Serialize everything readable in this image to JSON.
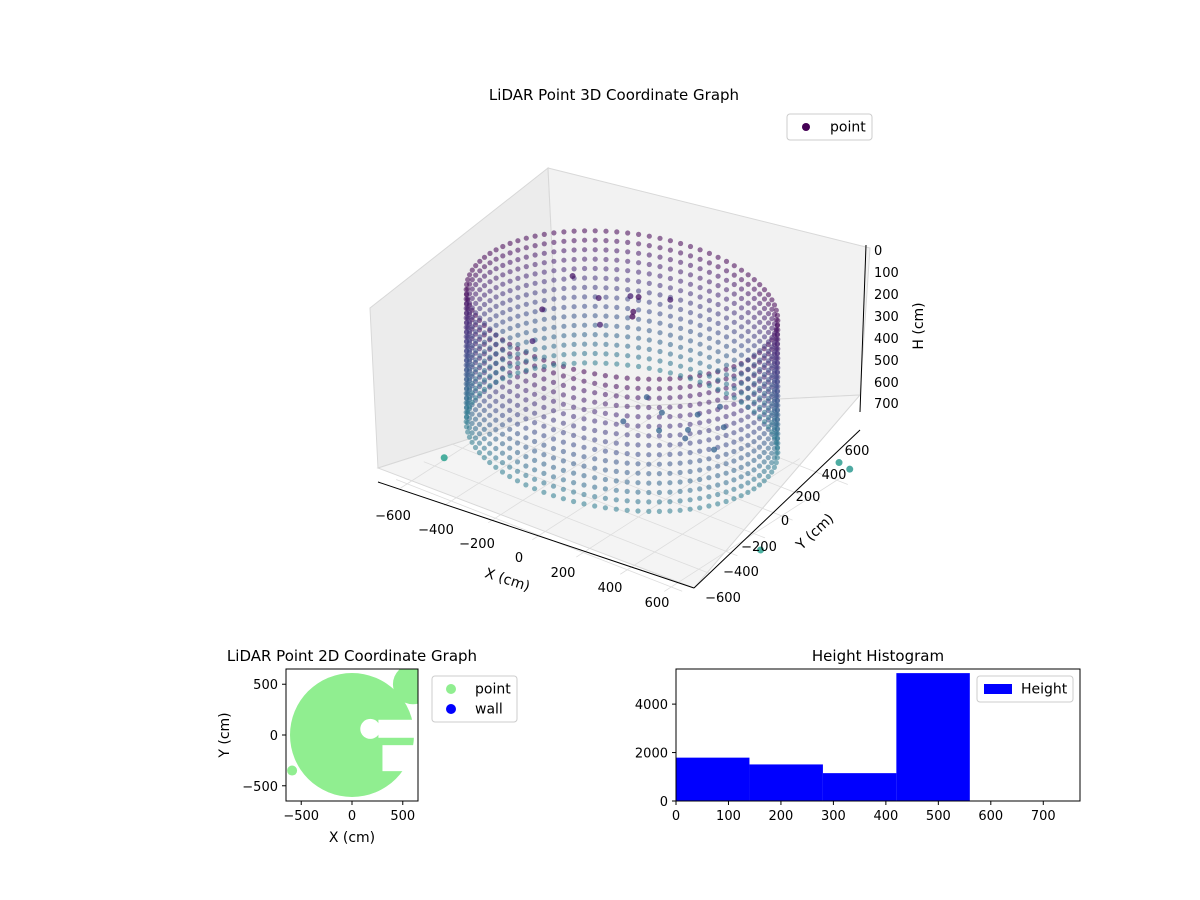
{
  "chart_data": [
    {
      "type": "scatter",
      "title": "LiDAR Point 3D Coordinate Graph",
      "xlabel": "X (cm)",
      "ylabel": "Y (cm)",
      "zlabel": "H (cm)",
      "xticks": [
        "−600",
        "−400",
        "−200",
        "0",
        "200",
        "400",
        "600"
      ],
      "yticks": [
        "−600",
        "−400",
        "−200",
        "0",
        "200",
        "400",
        "600"
      ],
      "zticks": [
        "0",
        "100",
        "200",
        "300",
        "400",
        "500",
        "600",
        "700"
      ],
      "xlim": [
        -650,
        650
      ],
      "ylim": [
        -650,
        650
      ],
      "zlim": [
        750,
        0
      ],
      "z_axis_inverted": true,
      "grid": true,
      "colormap": "viridis",
      "legend": {
        "position": "top-right",
        "entries": [
          {
            "label": "point",
            "color": "#440154"
          }
        ]
      },
      "series": [
        {
          "name": "point",
          "shape": "cylindrical wall of points",
          "radius": 600,
          "height_range": [
            0,
            560
          ],
          "center": [
            0,
            0
          ],
          "points": [
            {
              "x": 0,
              "y": 0,
              "z": 5
            }
          ],
          "outliers": [
            {
              "x": -620,
              "y": -300,
              "z": 760
            },
            {
              "x": 640,
              "y": 630,
              "z": 700
            },
            {
              "x": 680,
              "y": -80,
              "z": 760
            },
            {
              "x": 560,
              "y": 680,
              "z": 720
            }
          ]
        }
      ],
      "interior_points": [
        {
          "x": 300,
          "y": 0,
          "z": 420
        },
        {
          "x": 250,
          "y": 150,
          "z": 430
        },
        {
          "x": 350,
          "y": -100,
          "z": 400
        },
        {
          "x": 200,
          "y": -50,
          "z": 440
        },
        {
          "x": 400,
          "y": 100,
          "z": 410
        },
        {
          "x": 150,
          "y": 50,
          "z": 420
        },
        {
          "x": 320,
          "y": 200,
          "z": 390
        },
        {
          "x": 450,
          "y": -50,
          "z": 430
        },
        {
          "x": 100,
          "y": -150,
          "z": 400
        },
        {
          "x": 50,
          "y": 100,
          "z": 410
        },
        {
          "x": -100,
          "y": 0,
          "z": 120
        },
        {
          "x": -200,
          "y": 150,
          "z": 100
        },
        {
          "x": -300,
          "y": -100,
          "z": 90
        },
        {
          "x": -150,
          "y": 300,
          "z": 130
        },
        {
          "x": 0,
          "y": 350,
          "z": 110
        },
        {
          "x": -350,
          "y": 200,
          "z": 80
        },
        {
          "x": -250,
          "y": -250,
          "z": 150
        },
        {
          "x": -50,
          "y": 200,
          "z": 60
        },
        {
          "x": 20,
          "y": 50,
          "z": 40
        },
        {
          "x": 60,
          "y": -20,
          "z": 20
        }
      ]
    },
    {
      "type": "scatter",
      "title": "LiDAR Point 2D Coordinate Graph",
      "xlabel": "X (cm)",
      "ylabel": "Y (cm)",
      "xticks": [
        "−500",
        "0",
        "500"
      ],
      "yticks": [
        "500",
        "0",
        "−500"
      ],
      "xlim": [
        -650,
        650
      ],
      "ylim": [
        -650,
        650
      ],
      "legend": {
        "position": "outside-right",
        "entries": [
          {
            "label": "point",
            "color": "#90ee90"
          },
          {
            "label": "wall",
            "color": "#0000ff"
          }
        ]
      },
      "series": [
        {
          "name": "point",
          "color": "#90ee90",
          "shape": "filled disc of radius ~600 with notches"
        },
        {
          "name": "wall",
          "color": "#0000ff",
          "points": []
        }
      ]
    },
    {
      "type": "bar",
      "title": "Height Histogram",
      "xticks": [
        "0",
        "100",
        "200",
        "300",
        "400",
        "500",
        "600",
        "700"
      ],
      "yticks": [
        "0",
        "2000",
        "4000"
      ],
      "xlim": [
        0,
        770
      ],
      "ylim": [
        0,
        5450
      ],
      "legend": {
        "position": "top-right",
        "entries": [
          {
            "label": "Height",
            "color": "#0000ff"
          }
        ]
      },
      "series": [
        {
          "name": "Height",
          "color": "#0000ff",
          "bins": [
            {
              "x0": 0,
              "x1": 140,
              "value": 1790
            },
            {
              "x0": 140,
              "x1": 280,
              "value": 1510
            },
            {
              "x0": 280,
              "x1": 420,
              "value": 1150
            },
            {
              "x0": 420,
              "x1": 560,
              "value": 5280
            },
            {
              "x0": 560,
              "x1": 700,
              "value": 0
            }
          ]
        }
      ]
    }
  ]
}
